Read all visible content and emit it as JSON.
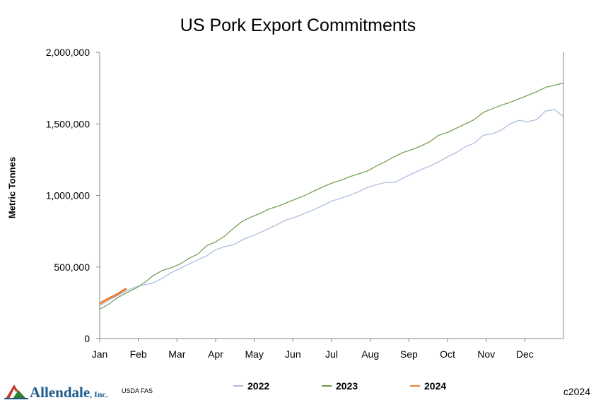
{
  "chart_data": {
    "type": "line",
    "title": "US Pork Export Commitments",
    "xlabel": "",
    "ylabel": "Metric Tonnes",
    "x_tick_labels": [
      "Jan",
      "Feb",
      "Mar",
      "Apr",
      "May",
      "Jun",
      "Jul",
      "Aug",
      "Sep",
      "Oct",
      "Nov",
      "Dec"
    ],
    "y_tick_labels": [
      "0",
      "500,000",
      "1,000,000",
      "1,500,000",
      "2,000,000"
    ],
    "ylim": [
      0,
      2000000
    ],
    "xlim": [
      1,
      53
    ],
    "grid": false,
    "legend_position": "bottom",
    "series": [
      {
        "name": "2022",
        "color": "#a9b9df",
        "x": [
          1,
          2,
          3,
          4,
          5,
          6,
          7,
          8,
          9,
          10,
          11,
          12,
          13,
          14,
          15,
          16,
          17,
          18,
          19,
          20,
          21,
          22,
          23,
          24,
          25,
          26,
          27,
          28,
          29,
          30,
          31,
          32,
          33,
          34,
          35,
          36,
          37,
          38,
          39,
          40,
          41,
          42,
          43,
          44,
          45,
          46,
          47,
          48,
          49,
          50,
          51,
          52,
          53
        ],
        "values": [
          230000,
          265000,
          300000,
          335000,
          360000,
          375000,
          390000,
          420000,
          460000,
          490000,
          520000,
          550000,
          578000,
          620000,
          642000,
          655000,
          690000,
          715000,
          740000,
          770000,
          800000,
          830000,
          850000,
          875000,
          900000,
          930000,
          960000,
          980000,
          1000000,
          1025000,
          1055000,
          1075000,
          1090000,
          1090000,
          1120000,
          1150000,
          1180000,
          1205000,
          1235000,
          1270000,
          1300000,
          1340000,
          1365000,
          1420000,
          1430000,
          1455000,
          1500000,
          1525000,
          1515000,
          1530000,
          1590000,
          1600000,
          1550000
        ]
      },
      {
        "name": "2023",
        "color": "#6a9a4c",
        "x": [
          1,
          2,
          3,
          4,
          5,
          6,
          7,
          8,
          9,
          10,
          11,
          12,
          13,
          14,
          15,
          16,
          17,
          18,
          19,
          20,
          21,
          22,
          23,
          24,
          25,
          26,
          27,
          28,
          29,
          30,
          31,
          32,
          33,
          34,
          35,
          36,
          37,
          38,
          39,
          40,
          41,
          42,
          43,
          44,
          45,
          46,
          47,
          48,
          49,
          50,
          51,
          52,
          53
        ],
        "values": [
          205000,
          240000,
          285000,
          320000,
          350000,
          390000,
          440000,
          475000,
          495000,
          520000,
          560000,
          590000,
          650000,
          675000,
          715000,
          770000,
          820000,
          850000,
          875000,
          905000,
          925000,
          950000,
          975000,
          1000000,
          1030000,
          1060000,
          1085000,
          1105000,
          1130000,
          1150000,
          1170000,
          1205000,
          1235000,
          1270000,
          1300000,
          1320000,
          1345000,
          1375000,
          1420000,
          1440000,
          1470000,
          1500000,
          1530000,
          1580000,
          1605000,
          1630000,
          1650000,
          1675000,
          1700000,
          1725000,
          1755000,
          1770000,
          1785000
        ]
      },
      {
        "name": "2024",
        "color": "#ed7d31",
        "x": [
          1,
          2,
          3,
          4
        ],
        "values": [
          245000,
          280000,
          310000,
          350000
        ]
      }
    ]
  },
  "footer": {
    "logo_text": "Allendale",
    "logo_suffix": ", Inc.",
    "source": "USDA FAS",
    "copyright": "c2024"
  }
}
